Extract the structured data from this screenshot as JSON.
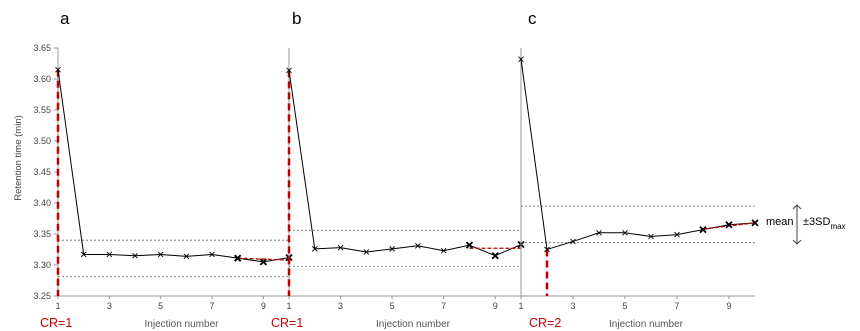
{
  "figure": {
    "ylabel": "Retention time (min)",
    "annotation_mean": "mean",
    "annotation_sd_prefix": "±3SD",
    "annotation_sd_sub": "max"
  },
  "colors": {
    "line": "#000000",
    "cr": "#c00000",
    "band": "#666666",
    "axis": "#999999"
  },
  "chart_data": [
    {
      "type": "line",
      "panel_label": "a",
      "xlabel": "Injection number",
      "cr_label": "CR=1",
      "cr_index": 1,
      "x": [
        1,
        2,
        3,
        4,
        5,
        6,
        7,
        8,
        9,
        10
      ],
      "values": [
        3.615,
        3.317,
        3.317,
        3.315,
        3.317,
        3.314,
        3.317,
        3.311,
        3.305,
        3.312
      ],
      "xticks": [
        1,
        3,
        5,
        7,
        9
      ],
      "xlim": [
        1,
        10
      ],
      "ylim": [
        3.25,
        3.65
      ],
      "yticks": [
        3.25,
        3.3,
        3.35,
        3.4,
        3.45,
        3.5,
        3.55,
        3.6,
        3.65
      ],
      "band_upper": 3.34,
      "band_lower": 3.281,
      "mean_line": {
        "x": [
          8,
          10
        ],
        "y": [
          3.311,
          3.308
        ]
      }
    },
    {
      "type": "line",
      "panel_label": "b",
      "xlabel": "Injection number",
      "cr_label": "CR=1",
      "cr_index": 1,
      "x": [
        1,
        2,
        3,
        4,
        5,
        6,
        7,
        8,
        9,
        10
      ],
      "values": [
        3.614,
        3.326,
        3.328,
        3.321,
        3.326,
        3.331,
        3.323,
        3.332,
        3.315,
        3.333
      ],
      "xticks": [
        1,
        3,
        5,
        7,
        9
      ],
      "xlim": [
        1,
        10
      ],
      "ylim": [
        3.25,
        3.65
      ],
      "band_upper": 3.356,
      "band_lower": 3.298,
      "mean_line": {
        "x": [
          8,
          10
        ],
        "y": [
          3.327,
          3.327
        ]
      }
    },
    {
      "type": "line",
      "panel_label": "c",
      "xlabel": "Injection number",
      "cr_label": "CR=2",
      "cr_index": 2,
      "x": [
        1,
        2,
        3,
        4,
        5,
        6,
        7,
        8,
        9,
        10
      ],
      "values": [
        3.632,
        3.325,
        3.338,
        3.352,
        3.352,
        3.346,
        3.349,
        3.357,
        3.365,
        3.368
      ],
      "xticks": [
        1,
        3,
        5,
        7,
        9
      ],
      "xlim": [
        1,
        10
      ],
      "ylim": [
        3.25,
        3.65
      ],
      "band_upper": 3.395,
      "band_lower": 3.336,
      "mean_line": {
        "x": [
          8,
          10
        ],
        "y": [
          3.358,
          3.368
        ]
      }
    }
  ]
}
